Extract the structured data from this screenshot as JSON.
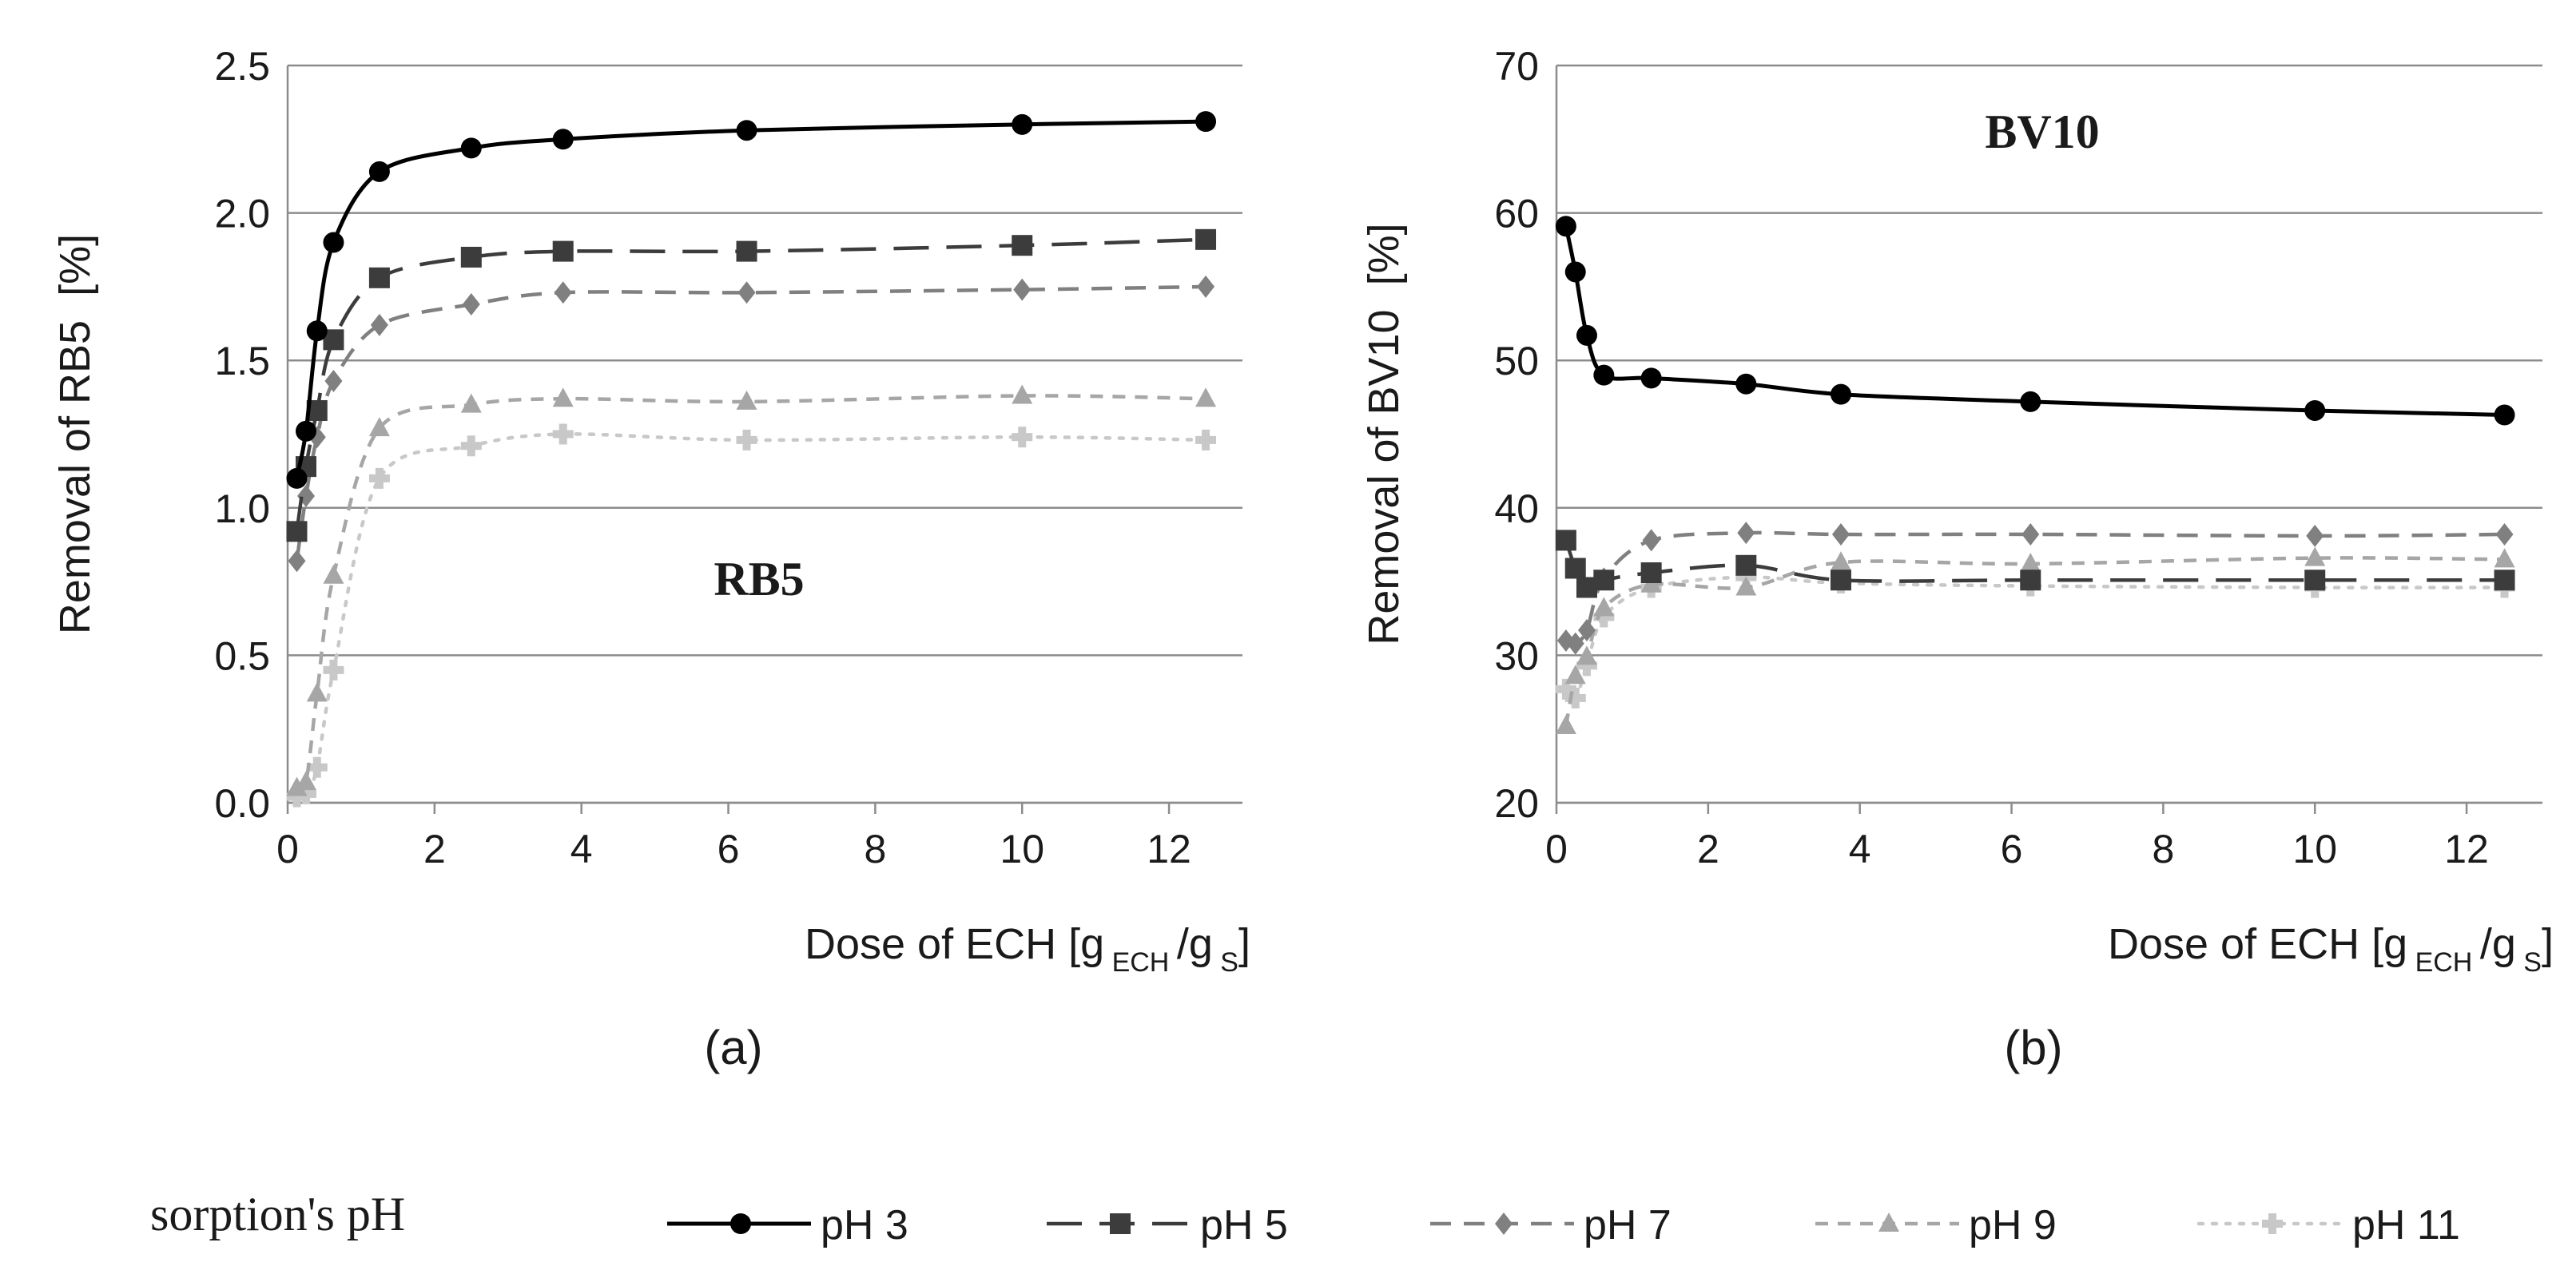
{
  "legend": {
    "title": "sorption's pH"
  },
  "series_styles": [
    {
      "name": "pH 3",
      "color": "#000000",
      "dash": "none",
      "marker": "circle"
    },
    {
      "name": "pH 5",
      "color": "#3c3c3c",
      "dash": "long",
      "marker": "square"
    },
    {
      "name": "pH 7",
      "color": "#808080",
      "dash": "medium",
      "marker": "diamond"
    },
    {
      "name": "pH 9",
      "color": "#a6a6a6",
      "dash": "short",
      "marker": "triangle"
    },
    {
      "name": "pH 11",
      "color": "#c8c8c8",
      "dash": "dot",
      "marker": "plus"
    }
  ],
  "chart_data": [
    {
      "type": "line",
      "panel_label": "(a)",
      "annotation": "RB5",
      "ylabel": "Removal of RB5  [%]",
      "xlabel": {
        "main": "Dose of ECH [g",
        "sub1": "ECH",
        "mid": "/g",
        "sub2": "S",
        "end": "]"
      },
      "xlim": [
        0,
        13
      ],
      "ylim": [
        0,
        2.5
      ],
      "xticks": [
        "0",
        "2",
        "4",
        "6",
        "8",
        "10",
        "12"
      ],
      "yticks": [
        "0.0",
        "0.5",
        "1.0",
        "1.5",
        "2.0",
        "2.5"
      ],
      "grid": true,
      "x": [
        0.125,
        0.25,
        0.4,
        0.625,
        1.25,
        2.5,
        3.75,
        6.25,
        10,
        12.5
      ],
      "series": [
        {
          "name": "pH 3",
          "values": [
            1.1,
            1.26,
            1.6,
            1.9,
            2.14,
            2.22,
            2.25,
            2.28,
            2.3,
            2.31
          ]
        },
        {
          "name": "pH 5",
          "values": [
            0.92,
            1.14,
            1.33,
            1.57,
            1.78,
            1.85,
            1.87,
            1.87,
            1.89,
            1.91
          ]
        },
        {
          "name": "pH 7",
          "values": [
            0.82,
            1.04,
            1.24,
            1.43,
            1.62,
            1.69,
            1.73,
            1.73,
            1.74,
            1.75
          ]
        },
        {
          "name": "pH 9",
          "values": [
            0.05,
            0.07,
            0.37,
            0.77,
            1.27,
            1.35,
            1.37,
            1.36,
            1.38,
            1.37
          ]
        },
        {
          "name": "pH 11",
          "values": [
            0.02,
            0.03,
            0.12,
            0.45,
            1.1,
            1.21,
            1.25,
            1.23,
            1.24,
            1.23
          ]
        }
      ]
    },
    {
      "type": "line",
      "panel_label": "(b)",
      "annotation": "BV10",
      "ylabel": "Removal of BV10  [%]",
      "xlabel": {
        "main": "Dose of ECH [g",
        "sub1": "ECH",
        "mid": "/g",
        "sub2": "S",
        "end": "]"
      },
      "xlim": [
        0,
        13
      ],
      "ylim": [
        20,
        70
      ],
      "xticks": [
        "0",
        "2",
        "4",
        "6",
        "8",
        "10",
        "12"
      ],
      "yticks": [
        "20",
        "30",
        "40",
        "50",
        "60",
        "70"
      ],
      "grid": true,
      "x": [
        0.125,
        0.25,
        0.4,
        0.625,
        1.25,
        2.5,
        3.75,
        6.25,
        10,
        12.5
      ],
      "series": [
        {
          "name": "pH 3",
          "values": [
            59.1,
            56,
            51.7,
            49,
            48.8,
            48.4,
            47.7,
            47.2,
            46.6,
            46.3
          ]
        },
        {
          "name": "pH 5",
          "values": [
            37.8,
            35.9,
            34.6,
            35.1,
            35.6,
            36.1,
            35.1,
            35.1,
            35.1,
            35.1
          ]
        },
        {
          "name": "pH 7",
          "values": [
            31,
            30.8,
            31.7,
            35.2,
            37.8,
            38.3,
            38.2,
            38.2,
            38.1,
            38.2
          ]
        },
        {
          "name": "pH 9",
          "values": [
            25.2,
            28.6,
            29.9,
            33.2,
            34.8,
            34.6,
            36.3,
            36.2,
            36.6,
            36.5
          ]
        },
        {
          "name": "pH 11",
          "values": [
            27.7,
            27.1,
            29.3,
            32.6,
            34.6,
            35.3,
            34.9,
            34.7,
            34.6,
            34.6
          ]
        }
      ]
    }
  ]
}
